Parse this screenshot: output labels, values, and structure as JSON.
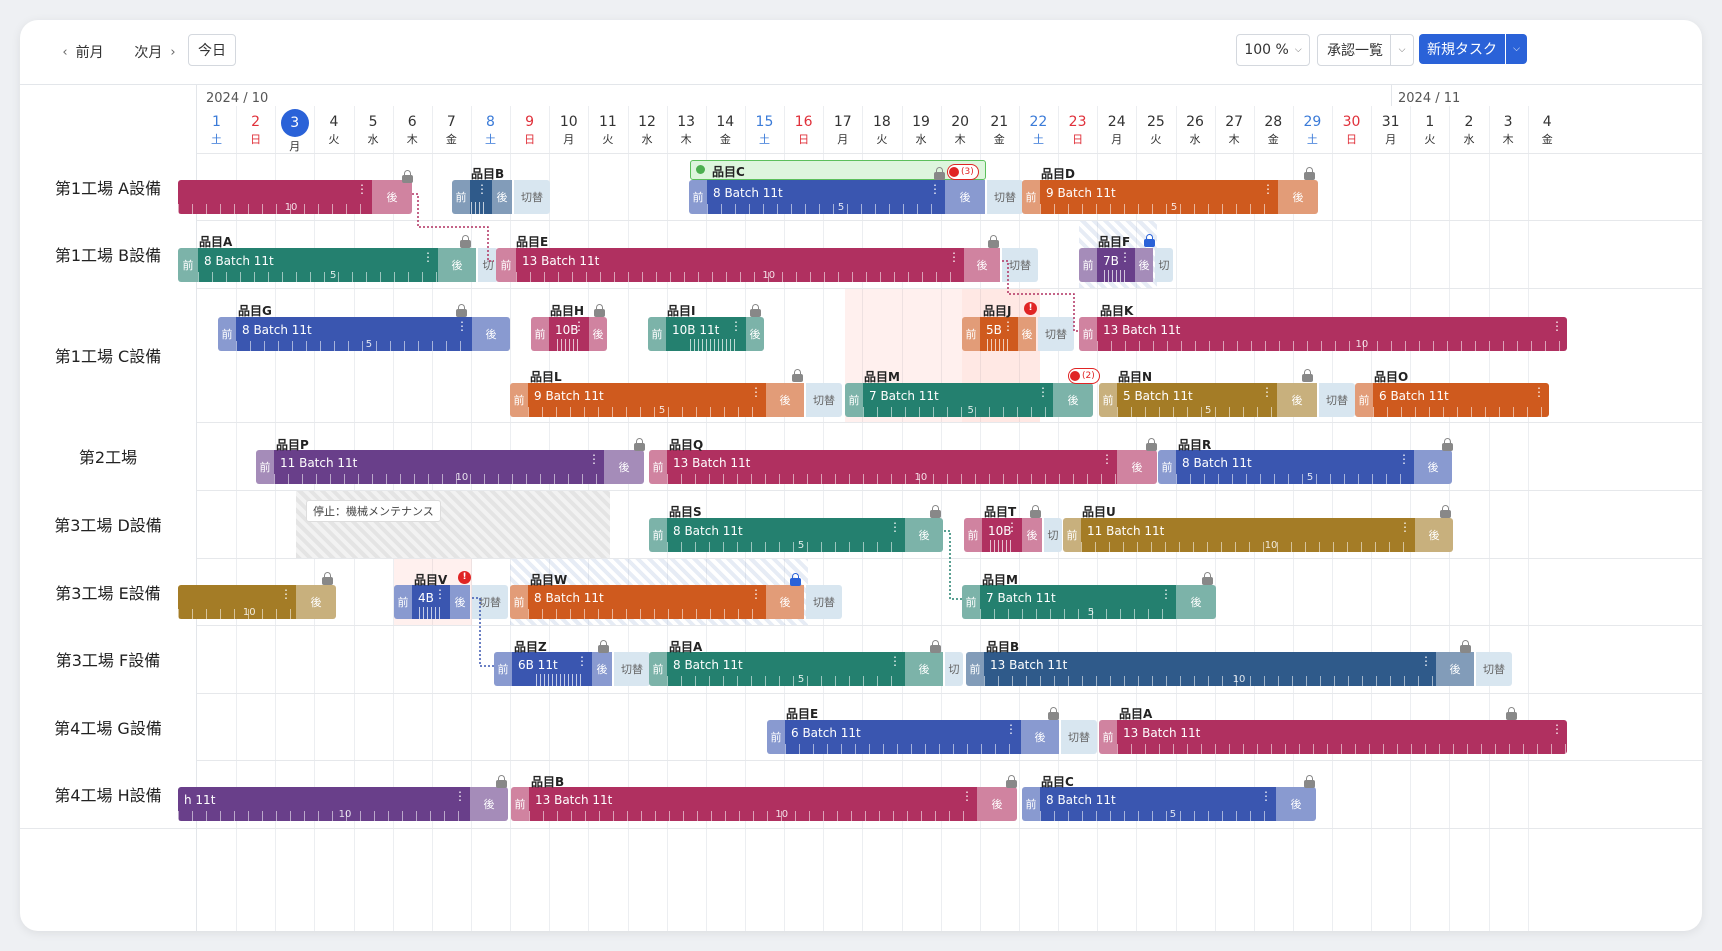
{
  "toolbar": {
    "prev_label": "前月",
    "next_label": "次月",
    "today_label": "今日",
    "zoom_value": "100 %",
    "approval_label": "承認一覧",
    "new_task_label": "新規タスク"
  },
  "months": [
    {
      "label": "2024 / 10"
    },
    {
      "label": "2024 / 11"
    }
  ],
  "days": [
    {
      "d": "1",
      "w": "土",
      "t": "sat"
    },
    {
      "d": "2",
      "w": "日",
      "t": "sun"
    },
    {
      "d": "3",
      "w": "月",
      "t": "today"
    },
    {
      "d": "4",
      "w": "火",
      "t": ""
    },
    {
      "d": "5",
      "w": "水",
      "t": ""
    },
    {
      "d": "6",
      "w": "木",
      "t": ""
    },
    {
      "d": "7",
      "w": "金",
      "t": ""
    },
    {
      "d": "8",
      "w": "土",
      "t": "sat"
    },
    {
      "d": "9",
      "w": "日",
      "t": "sun"
    },
    {
      "d": "10",
      "w": "月",
      "t": ""
    },
    {
      "d": "11",
      "w": "火",
      "t": ""
    },
    {
      "d": "12",
      "w": "水",
      "t": ""
    },
    {
      "d": "13",
      "w": "木",
      "t": ""
    },
    {
      "d": "14",
      "w": "金",
      "t": ""
    },
    {
      "d": "15",
      "w": "土",
      "t": "sat"
    },
    {
      "d": "16",
      "w": "日",
      "t": "sun"
    },
    {
      "d": "17",
      "w": "月",
      "t": ""
    },
    {
      "d": "18",
      "w": "火",
      "t": ""
    },
    {
      "d": "19",
      "w": "水",
      "t": ""
    },
    {
      "d": "20",
      "w": "木",
      "t": ""
    },
    {
      "d": "21",
      "w": "金",
      "t": ""
    },
    {
      "d": "22",
      "w": "土",
      "t": "sat"
    },
    {
      "d": "23",
      "w": "日",
      "t": "sun"
    },
    {
      "d": "24",
      "w": "月",
      "t": ""
    },
    {
      "d": "25",
      "w": "火",
      "t": ""
    },
    {
      "d": "26",
      "w": "水",
      "t": ""
    },
    {
      "d": "27",
      "w": "木",
      "t": ""
    },
    {
      "d": "28",
      "w": "金",
      "t": ""
    },
    {
      "d": "29",
      "w": "土",
      "t": "sat"
    },
    {
      "d": "30",
      "w": "日",
      "t": "sun"
    },
    {
      "d": "31",
      "w": "月",
      "t": ""
    },
    {
      "d": "1",
      "w": "火",
      "t": ""
    },
    {
      "d": "2",
      "w": "水",
      "t": ""
    },
    {
      "d": "3",
      "w": "木",
      "t": ""
    },
    {
      "d": "4",
      "w": "金",
      "t": ""
    }
  ],
  "rows": [
    {
      "label": "第1工場 A設備"
    },
    {
      "label": "第1工場 B設備"
    },
    {
      "label": "第1工場 C設備"
    },
    {
      "label": "第2工場"
    },
    {
      "label": "第3工場 D設備"
    },
    {
      "label": "第3工場 E設備"
    },
    {
      "label": "第3工場 F設備"
    },
    {
      "label": "第4工場 G設備"
    },
    {
      "label": "第4工場 H設備"
    }
  ],
  "stop_label": "停止：機械メンテナンス",
  "seg_labels": {
    "pre": "前",
    "post": "後",
    "switch": "切替",
    "switch_short": "切"
  },
  "badge_c": "(3)",
  "badge_m": "(2)",
  "colors": {
    "crimson": "#b03060",
    "blue": "#3a56b0",
    "teal": "#24806f",
    "orange": "#cf5a1e",
    "purple": "#693f8a",
    "olive": "#a47c26",
    "navy": "#2f5a8a",
    "switch": "#d8e6f0",
    "accent": "#2a62d8"
  },
  "tasks": [
    {
      "name": "",
      "text": "",
      "color": "crimson",
      "tick": "10"
    },
    {
      "name": "品目B",
      "text": "",
      "color": "navy",
      "tick": ""
    },
    {
      "name": "品目C",
      "text": "8 Batch  11t",
      "color": "blue",
      "tick": "5"
    },
    {
      "name": "品目D",
      "text": "9 Batch  11t",
      "color": "orange",
      "tick": "5"
    },
    {
      "name": "品目A",
      "text": "8 Batch  11t",
      "color": "teal",
      "tick": "5"
    },
    {
      "name": "品目E",
      "text": "13 Batch  11t",
      "color": "crimson",
      "tick": "10"
    },
    {
      "name": "品目F",
      "text": "7B",
      "color": "purple",
      "tick": ""
    },
    {
      "name": "品目G",
      "text": "8 Batch  11t",
      "color": "blue",
      "tick": "5"
    },
    {
      "name": "品目H",
      "text": "10B",
      "color": "crimson",
      "tick": ""
    },
    {
      "name": "品目I",
      "text": "10B  11t",
      "color": "teal",
      "tick": ""
    },
    {
      "name": "品目J",
      "text": "5B",
      "color": "orange",
      "tick": ""
    },
    {
      "name": "品目K",
      "text": "13 Batch  11t",
      "color": "crimson",
      "tick": "10"
    },
    {
      "name": "品目L",
      "text": "9 Batch  11t",
      "color": "orange",
      "tick": "5"
    },
    {
      "name": "品目M",
      "text": "7 Batch  11t",
      "color": "teal",
      "tick": "5"
    },
    {
      "name": "品目N",
      "text": "5 Batch  11t",
      "color": "olive",
      "tick": "5"
    },
    {
      "name": "品目O",
      "text": "6 Batch  11t",
      "color": "orange",
      "tick": ""
    },
    {
      "name": "品目P",
      "text": "11 Batch  11t",
      "color": "purple",
      "tick": "10"
    },
    {
      "name": "品目Q",
      "text": "13 Batch  11t",
      "color": "crimson",
      "tick": "10"
    },
    {
      "name": "品目R",
      "text": "8 Batch  11t",
      "color": "blue",
      "tick": "5"
    },
    {
      "name": "品目S",
      "text": "8 Batch  11t",
      "color": "teal",
      "tick": "5"
    },
    {
      "name": "品目T",
      "text": "10B",
      "color": "crimson",
      "tick": ""
    },
    {
      "name": "品目U",
      "text": "11 Batch  11t",
      "color": "olive",
      "tick": "10"
    },
    {
      "name": "",
      "text": "",
      "color": "olive",
      "tick": "10"
    },
    {
      "name": "品目V",
      "text": "4B",
      "color": "blue",
      "tick": ""
    },
    {
      "name": "品目W",
      "text": "8 Batch  11t",
      "color": "orange",
      "tick": ""
    },
    {
      "name": "品目M",
      "text": "7 Batch  11t",
      "color": "teal",
      "tick": "5"
    },
    {
      "name": "品目Z",
      "text": "6B  11t",
      "color": "blue",
      "tick": ""
    },
    {
      "name": "品目A",
      "text": "8 Batch  11t",
      "color": "teal",
      "tick": "5"
    },
    {
      "name": "品目B",
      "text": "13 Batch  11t",
      "color": "navy",
      "tick": "10"
    },
    {
      "name": "品目E",
      "text": "6 Batch  11t",
      "color": "blue",
      "tick": ""
    },
    {
      "name": "品目A",
      "text": "13 Batch  11t",
      "color": "crimson",
      "tick": ""
    },
    {
      "name": "",
      "text": "h  11t",
      "color": "purple",
      "tick": "10"
    },
    {
      "name": "品目B",
      "text": "13 Batch  11t",
      "color": "crimson",
      "tick": "10"
    },
    {
      "name": "品目C",
      "text": "8 Batch  11t",
      "color": "blue",
      "tick": "5"
    }
  ]
}
